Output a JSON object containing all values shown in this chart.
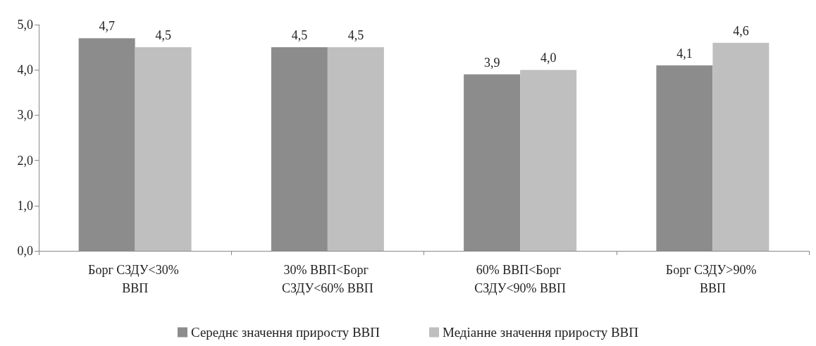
{
  "chart_data": {
    "type": "bar",
    "categories": [
      "Борг СЗДУ<30% ВВП",
      "30% ВВП<Борг СЗДУ<60% ВВП",
      "60% ВВП<Борг СЗДУ<90% ВВП",
      "Борг СЗДУ>90% ВВП"
    ],
    "series": [
      {
        "name": "Середнє значення приросту ВВП",
        "color": "#8c8c8c",
        "values": [
          4.7,
          4.5,
          3.9,
          4.1
        ],
        "value_labels": [
          "4,7",
          "4,5",
          "3,9",
          "4,1"
        ]
      },
      {
        "name": "Медіанне значення приросту ВВП",
        "color": "#bfbfbf",
        "values": [
          4.5,
          4.5,
          4.0,
          4.6
        ],
        "value_labels": [
          "4,5",
          "4,5",
          "4,0",
          "4,6"
        ]
      }
    ],
    "ylim": [
      0,
      5
    ],
    "yticks": [
      {
        "value": 0,
        "label": "0,0"
      },
      {
        "value": 1,
        "label": "1,0"
      },
      {
        "value": 2,
        "label": "2,0"
      },
      {
        "value": 3,
        "label": "3,0"
      },
      {
        "value": 4,
        "label": "4,0"
      },
      {
        "value": 5,
        "label": "5,0"
      }
    ],
    "grid": false,
    "legend": "bottom"
  }
}
